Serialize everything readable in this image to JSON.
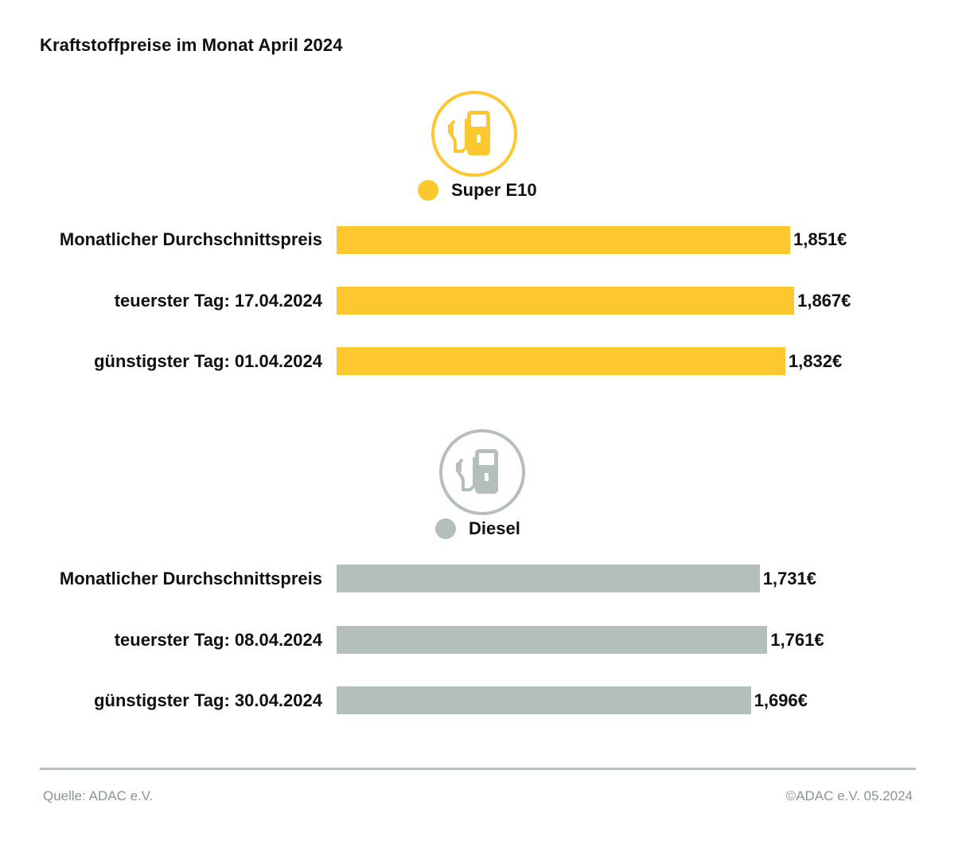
{
  "title": "Kraftstoffpreise im Monat April 2024",
  "colors": {
    "super": "#fdc82f",
    "diesel": "#b4bfbd",
    "text": "#111111",
    "footer": "#8a9592"
  },
  "icons": {
    "super": "fuel-pump-icon",
    "diesel": "fuel-pump-icon"
  },
  "chart_data": {
    "type": "bar",
    "orientation": "horizontal",
    "groups": [
      {
        "name": "Super E10",
        "color": "#fdc82f",
        "categories": [
          "Monatlicher Durchschnittspreis",
          "teuerster Tag: 17.04.2024",
          "günstigster Tag: 01.04.2024"
        ],
        "values": [
          1.851,
          1.867,
          1.832
        ],
        "labels": [
          "1,851€",
          "1,867€",
          "1,832€"
        ]
      },
      {
        "name": "Diesel",
        "color": "#b4bfbd",
        "categories": [
          "Monatlicher Durchschnittspreis",
          "teuerster Tag: 08.04.2024",
          "günstigster Tag: 30.04.2024"
        ],
        "values": [
          1.731,
          1.761,
          1.696
        ],
        "labels": [
          "1,731€",
          "1,761€",
          "1,696€"
        ]
      }
    ],
    "grid": false,
    "axes_visible": false
  },
  "footer": {
    "source": "Quelle: ADAC e.V.",
    "copyright": "©ADAC e.V. 05.2024"
  }
}
